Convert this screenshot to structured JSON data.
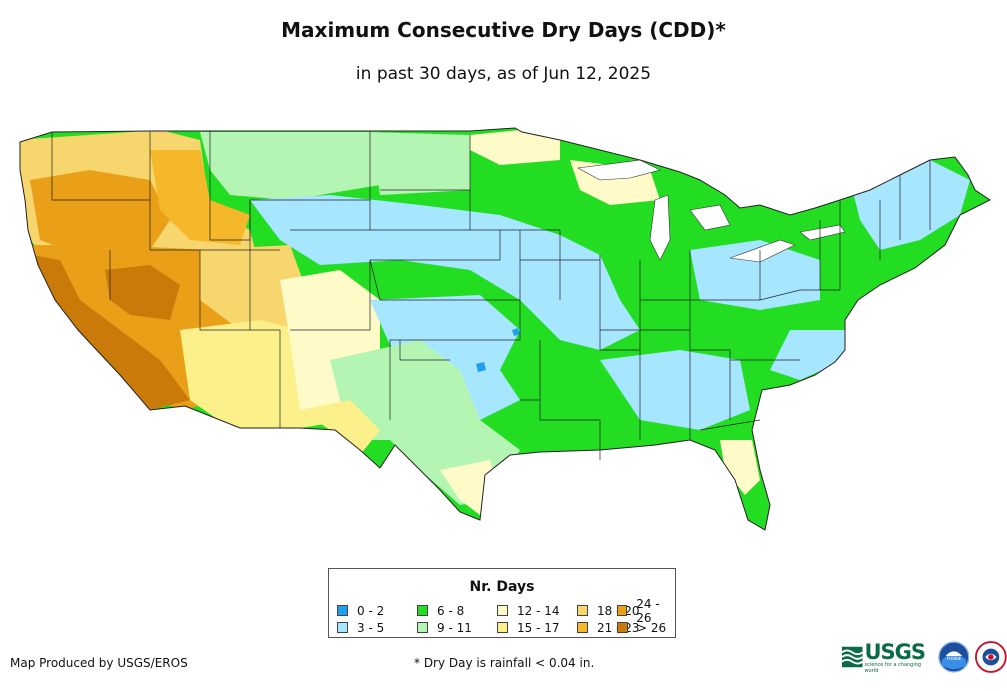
{
  "title": "Maximum Consecutive Dry Days (CDD)*",
  "subtitle": "in past 30 days, as of Jun 12, 2025",
  "legend": {
    "title": "Nr. Days",
    "items": [
      {
        "label": "0 - 2",
        "color": "#1ea0f0"
      },
      {
        "label": "3 - 5",
        "color": "#a6e6ff"
      },
      {
        "label": "6 - 8",
        "color": "#22dd22"
      },
      {
        "label": "9 - 11",
        "color": "#b4f5b4"
      },
      {
        "label": "12 - 14",
        "color": "#fefbc8"
      },
      {
        "label": "15 - 17",
        "color": "#fbf08a"
      },
      {
        "label": "18 - 20",
        "color": "#f7d66e"
      },
      {
        "label": "21 - 23",
        "color": "#f5b82a"
      },
      {
        "label": "24 - 26",
        "color": "#e99f17"
      },
      {
        "label": "> 26",
        "color": "#c97a08"
      }
    ]
  },
  "credit": "Map Produced by USGS/EROS",
  "footnote": "* Dry Day is rainfall < 0.04 in.",
  "logos": {
    "usgs": "USGS",
    "usgs_tagline": "science for a changing world",
    "noaa": "noaa"
  }
}
